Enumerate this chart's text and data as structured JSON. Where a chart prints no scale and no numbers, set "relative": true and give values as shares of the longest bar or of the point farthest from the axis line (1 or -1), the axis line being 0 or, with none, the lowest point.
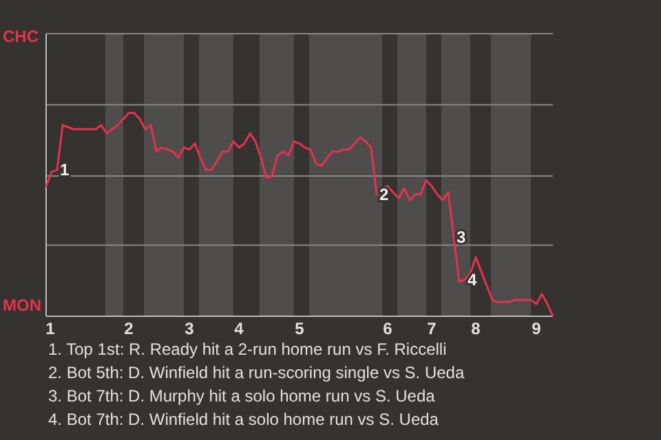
{
  "chart_data": {
    "type": "line",
    "relative": true,
    "categories": [
      "1",
      null,
      null,
      null,
      null,
      null,
      null,
      null,
      null,
      null,
      null,
      null,
      null,
      null,
      null,
      "2",
      null,
      null,
      null,
      null,
      null,
      null,
      null,
      null,
      null,
      null,
      "3",
      null,
      null,
      null,
      null,
      null,
      null,
      null,
      null,
      "4",
      null,
      null,
      null,
      null,
      null,
      null,
      null,
      null,
      null,
      null,
      "5",
      null,
      null,
      null,
      null,
      null,
      null,
      null,
      null,
      null,
      null,
      null,
      null,
      null,
      null,
      null,
      "6",
      null,
      null,
      null,
      null,
      null,
      null,
      null,
      "7",
      null,
      null,
      null,
      null,
      null,
      null,
      null,
      "8",
      null,
      null,
      null,
      null,
      null,
      null,
      null,
      null,
      null,
      null,
      "9",
      null,
      null,
      null
    ],
    "series": [
      {
        "color": "#e8304f",
        "values": [
          0.64,
          0.71,
          0.72,
          0.94,
          0.93,
          0.92,
          0.92,
          0.92,
          0.92,
          0.92,
          0.94,
          0.9,
          0.92,
          0.94,
          0.97,
          1,
          1,
          0.97,
          0.92,
          0.94,
          0.81,
          0.83,
          0.82,
          0.81,
          0.78,
          0.83,
          0.82,
          0.85,
          0.78,
          0.72,
          0.72,
          0.76,
          0.81,
          0.81,
          0.86,
          0.83,
          0.85,
          0.9,
          0.86,
          0.78,
          0.68,
          0.69,
          0.79,
          0.81,
          0.79,
          0.86,
          0.85,
          0.83,
          0.82,
          0.75,
          0.74,
          0.78,
          0.81,
          0.81,
          0.82,
          0.82,
          0.85,
          0.88,
          0.86,
          0.83,
          0.6,
          0.63,
          0.64,
          0.61,
          0.58,
          0.63,
          0.57,
          0.6,
          0.6,
          0.67,
          0.64,
          0.6,
          0.57,
          0.61,
          0.39,
          0.17,
          0.18,
          0.21,
          0.29,
          0.22,
          0.15,
          0.08,
          0.07,
          0.07,
          0.07,
          0.08,
          0.08,
          0.08,
          0.08,
          0.06,
          0.11,
          0.06,
          0
        ]
      }
    ],
    "ref_lines": [
      {
        "axis": "y",
        "value": 0.35,
        "color": "#8a8886"
      },
      {
        "axis": "y",
        "value": 0.69,
        "color": "#8a8886"
      },
      {
        "axis": "y",
        "value": 1.04,
        "color": "#8a8886"
      },
      {
        "axis": "y",
        "value": 1.39,
        "color": "#8a8886"
      }
    ],
    "marker": "none",
    "line_style": "solid",
    "annotations": [
      {
        "text": "1",
        "y": 0.72
      },
      {
        "text": "2",
        "y": 0.6
      },
      {
        "text": "3",
        "y": 0.39
      },
      {
        "text": "4",
        "y": 0.18
      },
      "CHC",
      "MON",
      "1. Top 1st: R. Ready hit a 2-run home run vs F. Riccelli",
      "2. Bot 5th: D. Winfield hit a run-scoring single vs S. Ueda",
      "3. Bot 7th: D. Murphy hit a solo home run vs S. Ueda",
      "4. Bot 7th: D. Winfield hit a solo home run vs S. Ueda"
    ]
  }
}
